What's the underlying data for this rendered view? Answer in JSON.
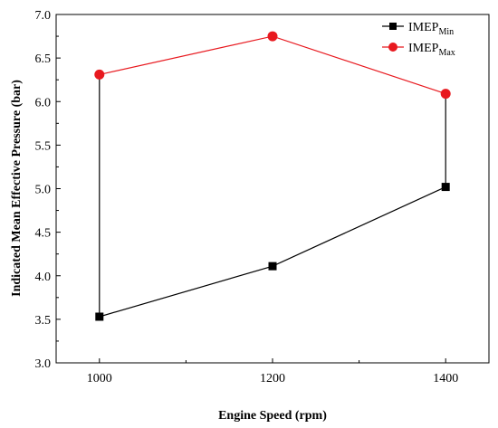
{
  "chart_data": {
    "type": "line",
    "xlabel": "Engine Speed (rpm)",
    "ylabel": "Indicated Mean Effective Pressure (bar)",
    "x": [
      1000,
      1200,
      1400
    ],
    "xlim": [
      950,
      1450
    ],
    "ylim": [
      3.0,
      7.0
    ],
    "xticks": [
      1000,
      1200,
      1400
    ],
    "yticks": [
      3.0,
      3.5,
      4.0,
      4.5,
      5.0,
      5.5,
      6.0,
      6.5,
      7.0
    ],
    "ytick_labels": [
      "3.0",
      "3.5",
      "4.0",
      "4.5",
      "5.0",
      "5.5",
      "6.0",
      "6.5",
      "7.0"
    ],
    "xtick_labels": [
      "1000",
      "1200",
      "1400"
    ],
    "grid": false,
    "legend_position": "top-right",
    "series": [
      {
        "name": "IMEP",
        "subscript": "Min",
        "values": [
          3.53,
          4.11,
          5.02
        ],
        "color": "#000000",
        "marker": "square"
      },
      {
        "name": "IMEP",
        "subscript": "Max",
        "values": [
          6.31,
          6.75,
          6.09
        ],
        "color": "#e8191f",
        "marker": "circle"
      }
    ],
    "connectors": {
      "color": "#000000",
      "style": "vertical lines joining min and max at each end speed"
    }
  }
}
